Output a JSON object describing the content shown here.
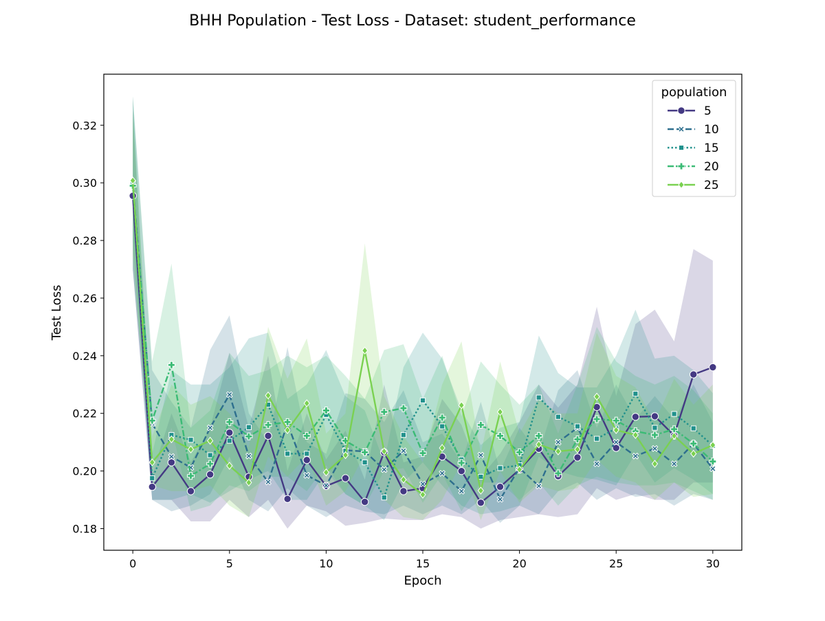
{
  "figure": {
    "title": "BHH Population - Test Loss - Dataset: student_performance"
  },
  "chart_data": {
    "type": "line",
    "title": "BHH Population - Test Loss - Dataset: student_performance",
    "xlabel": "Epoch",
    "ylabel": "Test Loss",
    "xlim": [
      -1.5,
      31.5
    ],
    "ylim": [
      0.1725,
      0.3377
    ],
    "xticks": [
      0,
      5,
      10,
      15,
      20,
      25,
      30
    ],
    "yticks": [
      0.18,
      0.2,
      0.22,
      0.24,
      0.26,
      0.28,
      0.3,
      0.32
    ],
    "ytick_labels": [
      "0.18",
      "0.20",
      "0.22",
      "0.24",
      "0.26",
      "0.28",
      "0.30",
      "0.32"
    ],
    "grid": false,
    "legend": {
      "title": "population",
      "placement": "top-right"
    },
    "x": [
      0,
      1,
      2,
      3,
      4,
      5,
      6,
      7,
      8,
      9,
      10,
      11,
      12,
      13,
      14,
      15,
      16,
      17,
      18,
      19,
      20,
      21,
      22,
      23,
      24,
      25,
      26,
      27,
      28,
      29,
      30
    ],
    "series": [
      {
        "name": "5",
        "color": "#443983",
        "marker": "circle",
        "dash": "solid",
        "values": [
          0.2955,
          0.1945,
          0.203,
          0.193,
          0.1988,
          0.2133,
          0.198,
          0.2122,
          0.1903,
          0.2038,
          0.1948,
          0.1975,
          0.1893,
          0.2065,
          0.193,
          0.194,
          0.205,
          0.2,
          0.189,
          0.1945,
          0.2005,
          0.2077,
          0.1982,
          0.2047,
          0.2222,
          0.208,
          0.2188,
          0.219,
          0.2123,
          0.2335,
          0.236
        ],
        "lower": [
          0.27,
          0.19,
          0.19,
          0.1825,
          0.1825,
          0.19,
          0.184,
          0.19,
          0.18,
          0.188,
          0.186,
          0.181,
          0.182,
          0.1835,
          0.183,
          0.183,
          0.185,
          0.184,
          0.18,
          0.183,
          0.184,
          0.185,
          0.184,
          0.185,
          0.194,
          0.19,
          0.192,
          0.19,
          0.19,
          0.196,
          0.196
        ],
        "upper": [
          0.325,
          0.199,
          0.22,
          0.203,
          0.215,
          0.241,
          0.215,
          0.24,
          0.2,
          0.22,
          0.204,
          0.214,
          0.197,
          0.23,
          0.203,
          0.205,
          0.225,
          0.216,
          0.198,
          0.206,
          0.217,
          0.23,
          0.222,
          0.23,
          0.257,
          0.226,
          0.251,
          0.256,
          0.245,
          0.277,
          0.273
        ]
      },
      {
        "name": "10",
        "color": "#2e6f8e",
        "marker": "x",
        "dash": "dash",
        "values": [
          0.3,
          0.2165,
          0.205,
          0.2012,
          0.215,
          0.2265,
          0.2052,
          0.1962,
          0.2165,
          0.1985,
          0.195,
          0.2072,
          0.2068,
          0.2005,
          0.207,
          0.1955,
          0.1992,
          0.193,
          0.2055,
          0.1902,
          0.201,
          0.1948,
          0.21,
          0.215,
          0.2025,
          0.21,
          0.2052,
          0.2078,
          0.2025,
          0.2095,
          0.2008
        ],
        "lower": [
          0.27,
          0.19,
          0.186,
          0.188,
          0.192,
          0.205,
          0.19,
          0.186,
          0.194,
          0.188,
          0.184,
          0.188,
          0.186,
          0.185,
          0.188,
          0.185,
          0.188,
          0.185,
          0.19,
          0.182,
          0.188,
          0.185,
          0.193,
          0.196,
          0.19,
          0.194,
          0.191,
          0.192,
          0.188,
          0.192,
          0.19
        ],
        "upper": [
          0.33,
          0.235,
          0.224,
          0.215,
          0.242,
          0.254,
          0.22,
          0.21,
          0.243,
          0.21,
          0.206,
          0.227,
          0.225,
          0.217,
          0.228,
          0.21,
          0.213,
          0.203,
          0.224,
          0.2,
          0.215,
          0.206,
          0.228,
          0.235,
          0.215,
          0.23,
          0.218,
          0.226,
          0.218,
          0.23,
          0.217
        ]
      },
      {
        "name": "15",
        "color": "#21918c",
        "marker": "square",
        "dash": "dot",
        "values": [
          0.3,
          0.1975,
          0.2125,
          0.2108,
          0.2055,
          0.2105,
          0.2152,
          0.223,
          0.206,
          0.206,
          0.2195,
          0.207,
          0.203,
          0.1908,
          0.2125,
          0.2245,
          0.2155,
          0.204,
          0.198,
          0.201,
          0.202,
          0.2255,
          0.2188,
          0.2155,
          0.2112,
          0.2148,
          0.2268,
          0.215,
          0.2198,
          0.2148,
          0.2088
        ],
        "lower": [
          0.28,
          0.19,
          0.19,
          0.192,
          0.189,
          0.193,
          0.197,
          0.2,
          0.19,
          0.19,
          0.2,
          0.192,
          0.188,
          0.183,
          0.196,
          0.203,
          0.195,
          0.188,
          0.185,
          0.186,
          0.188,
          0.205,
          0.2,
          0.198,
          0.197,
          0.195,
          0.206,
          0.196,
          0.201,
          0.197,
          0.192
        ],
        "upper": [
          0.33,
          0.206,
          0.235,
          0.23,
          0.23,
          0.236,
          0.246,
          0.248,
          0.225,
          0.23,
          0.242,
          0.226,
          0.221,
          0.203,
          0.236,
          0.248,
          0.239,
          0.221,
          0.209,
          0.215,
          0.217,
          0.247,
          0.234,
          0.229,
          0.229,
          0.24,
          0.256,
          0.239,
          0.24,
          0.235,
          0.227
        ]
      },
      {
        "name": "20",
        "color": "#3bbb75",
        "marker": "plus",
        "dash": "dashdot",
        "values": [
          0.299,
          0.2175,
          0.2368,
          0.1983,
          0.2025,
          0.217,
          0.212,
          0.216,
          0.217,
          0.2122,
          0.221,
          0.2105,
          0.2065,
          0.2205,
          0.2218,
          0.2062,
          0.2185,
          0.2028,
          0.216,
          0.2122,
          0.2065,
          0.2122,
          0.1992,
          0.211,
          0.218,
          0.2175,
          0.2138,
          0.2125,
          0.2145,
          0.2095,
          0.2033
        ],
        "lower": [
          0.27,
          0.2,
          0.215,
          0.186,
          0.188,
          0.195,
          0.193,
          0.198,
          0.198,
          0.193,
          0.202,
          0.192,
          0.188,
          0.2,
          0.201,
          0.189,
          0.199,
          0.186,
          0.196,
          0.196,
          0.19,
          0.196,
          0.188,
          0.195,
          0.198,
          0.196,
          0.195,
          0.195,
          0.196,
          0.193,
          0.19
        ],
        "upper": [
          0.33,
          0.238,
          0.272,
          0.215,
          0.221,
          0.241,
          0.233,
          0.235,
          0.24,
          0.236,
          0.24,
          0.233,
          0.225,
          0.242,
          0.244,
          0.225,
          0.24,
          0.219,
          0.238,
          0.23,
          0.223,
          0.23,
          0.213,
          0.23,
          0.25,
          0.238,
          0.233,
          0.23,
          0.233,
          0.228,
          0.22
        ]
      },
      {
        "name": "25",
        "color": "#7ad151",
        "marker": "diamond",
        "dash": "solid",
        "values": [
          0.3008,
          0.203,
          0.211,
          0.2075,
          0.2105,
          0.2018,
          0.196,
          0.2262,
          0.2142,
          0.2235,
          0.1995,
          0.2055,
          0.2418,
          0.2068,
          0.197,
          0.1918,
          0.208,
          0.2228,
          0.1932,
          0.2205,
          0.2005,
          0.2092,
          0.2068,
          0.2075,
          0.2258,
          0.2142,
          0.2125,
          0.2025,
          0.2122,
          0.206,
          0.209
        ],
        "lower": [
          0.275,
          0.195,
          0.193,
          0.193,
          0.195,
          0.188,
          0.184,
          0.205,
          0.198,
          0.205,
          0.188,
          0.193,
          0.206,
          0.19,
          0.184,
          0.183,
          0.19,
          0.203,
          0.183,
          0.2,
          0.189,
          0.195,
          0.193,
          0.194,
          0.204,
          0.198,
          0.196,
          0.19,
          0.196,
          0.191,
          0.192
        ],
        "upper": [
          0.325,
          0.212,
          0.23,
          0.223,
          0.226,
          0.22,
          0.208,
          0.25,
          0.232,
          0.246,
          0.213,
          0.22,
          0.279,
          0.226,
          0.212,
          0.203,
          0.23,
          0.245,
          0.206,
          0.238,
          0.213,
          0.225,
          0.22,
          0.22,
          0.248,
          0.233,
          0.229,
          0.217,
          0.232,
          0.223,
          0.23
        ]
      }
    ]
  }
}
